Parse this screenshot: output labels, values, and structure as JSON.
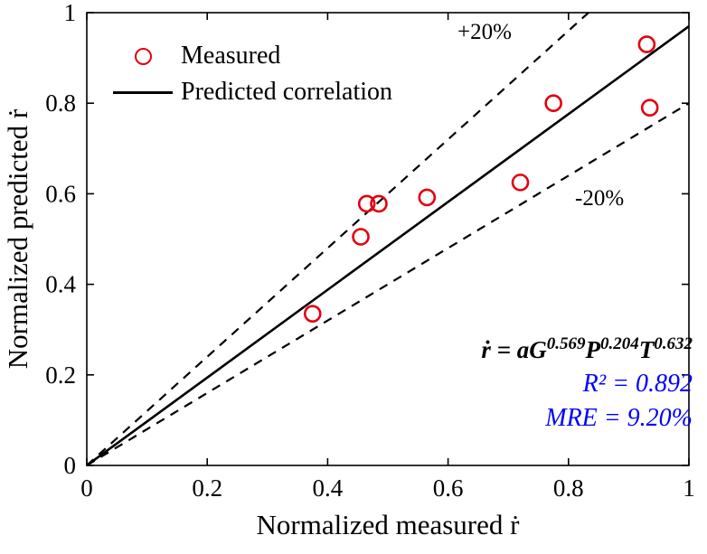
{
  "chart_data": {
    "type": "scatter",
    "title": "",
    "xlabel": "Normalized measured ṙ",
    "ylabel": "Normalized predicted ṙ",
    "xlim": [
      0,
      1
    ],
    "ylim": [
      0,
      1
    ],
    "xticks": [
      0,
      0.2,
      0.4,
      0.6,
      0.8,
      1
    ],
    "yticks": [
      0,
      0.2,
      0.4,
      0.6,
      0.8,
      1
    ],
    "xtick_labels": [
      "0",
      "0.2",
      "0.4",
      "0.6",
      "0.8",
      "1"
    ],
    "ytick_labels": [
      "0",
      "0.2",
      "0.4",
      "0.6",
      "0.8",
      "1"
    ],
    "grid": false,
    "legend_position": "top-left-inside",
    "series": [
      {
        "name": "Measured",
        "type": "scatter",
        "marker": "open-circle",
        "color": "#e3000f",
        "points": [
          [
            0.375,
            0.335
          ],
          [
            0.455,
            0.505
          ],
          [
            0.465,
            0.578
          ],
          [
            0.485,
            0.578
          ],
          [
            0.565,
            0.592
          ],
          [
            0.72,
            0.625
          ],
          [
            0.775,
            0.8
          ],
          [
            0.93,
            0.93
          ],
          [
            0.935,
            0.79
          ]
        ]
      }
    ],
    "lines": [
      {
        "name": "predicted-correlation-line",
        "from": [
          0,
          0
        ],
        "to": [
          1,
          0.97
        ],
        "dashed": false,
        "color": "#000000"
      },
      {
        "name": "plus-20pct-line",
        "from": [
          0,
          0
        ],
        "to": [
          0.8333,
          1
        ],
        "dashed": true,
        "color": "#000000"
      },
      {
        "name": "minus-20pct-line",
        "from": [
          0,
          0
        ],
        "to": [
          1,
          0.8
        ],
        "dashed": true,
        "color": "#000000"
      }
    ],
    "legend": [
      {
        "label": "Measured",
        "marker": "circle",
        "color": "#e3000f"
      },
      {
        "label": "Predicted correlation",
        "marker": "line",
        "color": "#000000"
      }
    ],
    "annotations": {
      "plus_band_label": "+20%",
      "minus_band_label": "-20%",
      "equation_parts": [
        {
          "text": "ṙ = aG",
          "sup": false
        },
        {
          "text": "0.569",
          "sup": true
        },
        {
          "text": "P",
          "sup": false
        },
        {
          "text": "0.204",
          "sup": true
        },
        {
          "text": "T",
          "sup": false
        },
        {
          "text": "0.632",
          "sup": true
        }
      ],
      "r_squared": "R² = 0.892",
      "mre": "MRE = 9.20%"
    },
    "colors": {
      "marker": "#e3000f",
      "line": "#000000",
      "stats_text": "#0000ff",
      "axis": "#000000"
    }
  }
}
